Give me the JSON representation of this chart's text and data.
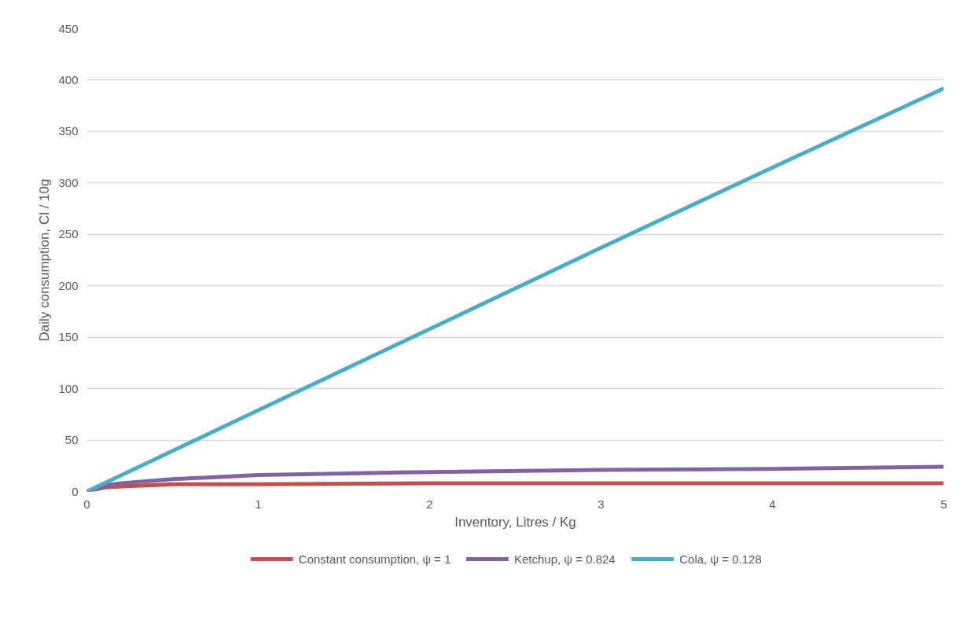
{
  "chart_data": {
    "type": "line",
    "xlabel": "Inventory, Litres / Kg",
    "ylabel": "Daily consumption, Cl / 10g",
    "xlim": [
      0,
      5
    ],
    "xticks": [
      0,
      1,
      2,
      3,
      4,
      5
    ],
    "ylim": [
      0,
      450
    ],
    "yticks": [
      0,
      50,
      100,
      150,
      200,
      250,
      300,
      350,
      400,
      450
    ],
    "grid": "y",
    "legend": "bottom",
    "marker": "none",
    "line_style": "solid",
    "series": [
      {
        "name": "Constant consumption, ψ = 1",
        "color": "#c0504d",
        "x": [
          0,
          0.1,
          0.2,
          0.5,
          1,
          2,
          3,
          4,
          5
        ],
        "values": [
          0,
          4,
          5,
          7,
          7,
          8,
          8,
          8,
          8
        ]
      },
      {
        "name": "Ketchup, ψ = 0.824",
        "color": "#8064a2",
        "x": [
          0,
          0.1,
          0.2,
          0.5,
          1,
          2,
          3,
          4,
          5
        ],
        "values": [
          0,
          6,
          8,
          12,
          16,
          19,
          21,
          22,
          24
        ]
      },
      {
        "name": "Cola, ψ = 0.128",
        "color": "#4bacc6",
        "x": [
          0,
          1,
          2,
          3,
          4,
          5
        ],
        "values": [
          0,
          79,
          158,
          237,
          315,
          392
        ]
      }
    ]
  }
}
